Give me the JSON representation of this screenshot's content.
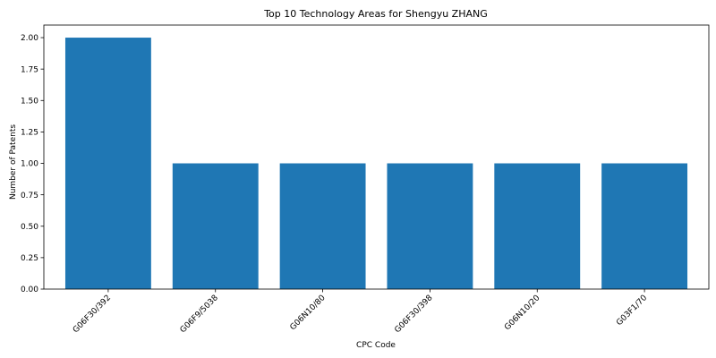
{
  "chart_data": {
    "type": "bar",
    "title": "Top 10 Technology Areas for Shengyu ZHANG",
    "xlabel": "CPC Code",
    "ylabel": "Number of Patents",
    "categories": [
      "G06F30/392",
      "G06F9/5038",
      "G06N10/80",
      "G06F30/398",
      "G06N10/20",
      "G03F1/70"
    ],
    "values": [
      2,
      1,
      1,
      1,
      1,
      1
    ],
    "ylim": [
      0,
      2.1
    ],
    "yticks": [
      "0.00",
      "0.25",
      "0.50",
      "0.75",
      "1.00",
      "1.25",
      "1.50",
      "1.75",
      "2.00"
    ],
    "bar_color": "#1f77b4",
    "grid": false,
    "legend": "none"
  }
}
